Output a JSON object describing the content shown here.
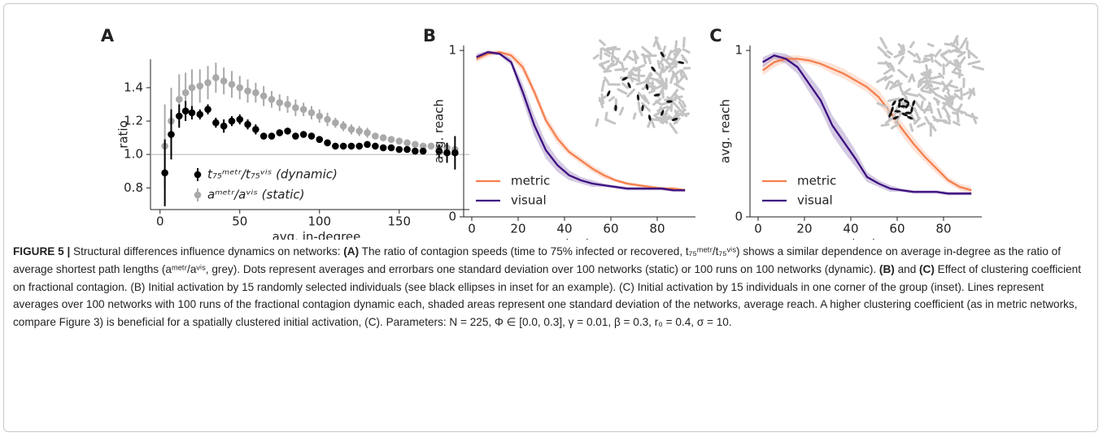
{
  "chart_data": [
    {
      "type": "errorbar",
      "panel_label": "A",
      "xlabel": "avg. in-degree",
      "ylabel": "ratio",
      "xlim": [
        -6,
        194
      ],
      "ylim": [
        0.67,
        1.57
      ],
      "xticks": [
        0,
        50,
        100,
        150
      ],
      "yticks": [
        {
          "value": 0.8,
          "label": "0.8"
        },
        {
          "value": 1.0,
          "label": "1.0"
        },
        {
          "value": 1.2,
          "label": "1.2"
        },
        {
          "value": 1.4,
          "label": "1.4"
        }
      ],
      "series": [
        {
          "name": "t₇₅ᵐᵉᵗʳ/t₇₅ᵛⁱˢ (dynamic)",
          "color": "#000000",
          "x": [
            3,
            7,
            12,
            16,
            20,
            25,
            30,
            35,
            40,
            45,
            50,
            55,
            60,
            65,
            70,
            75,
            80,
            85,
            90,
            95,
            100,
            105,
            110,
            115,
            120,
            125,
            130,
            135,
            140,
            145,
            150,
            155,
            160,
            165,
            175,
            180,
            185
          ],
          "values": [
            0.89,
            1.12,
            1.23,
            1.26,
            1.25,
            1.24,
            1.27,
            1.19,
            1.17,
            1.2,
            1.21,
            1.18,
            1.15,
            1.11,
            1.11,
            1.13,
            1.14,
            1.11,
            1.12,
            1.11,
            1.09,
            1.07,
            1.05,
            1.05,
            1.05,
            1.05,
            1.06,
            1.05,
            1.04,
            1.04,
            1.03,
            1.03,
            1.02,
            1.02,
            1.02,
            1.01,
            1.01
          ],
          "errors": [
            0.2,
            0.15,
            0.07,
            0.06,
            0.04,
            0.03,
            0.03,
            0.03,
            0.04,
            0.03,
            0.03,
            0.03,
            0.03,
            0.02,
            0.02,
            0.02,
            0.02,
            0.02,
            0.02,
            0.02,
            0.02,
            0.02,
            0.01,
            0.01,
            0.01,
            0.01,
            0.01,
            0.01,
            0.01,
            0.01,
            0.01,
            0.01,
            0.01,
            0.01,
            0.04,
            0.06,
            0.1
          ]
        },
        {
          "name": "aᵐᵉᵗʳ/aᵛⁱˢ (static)",
          "color": "#a9a9a9",
          "x": [
            3,
            7,
            12,
            16,
            20,
            25,
            30,
            35,
            40,
            45,
            50,
            55,
            60,
            65,
            70,
            75,
            80,
            85,
            90,
            95,
            100,
            105,
            110,
            115,
            120,
            125,
            130,
            135,
            140,
            145,
            150,
            155,
            160,
            165,
            170,
            175,
            180,
            185
          ],
          "values": [
            1.05,
            1.2,
            1.33,
            1.37,
            1.4,
            1.41,
            1.43,
            1.46,
            1.44,
            1.42,
            1.4,
            1.38,
            1.37,
            1.35,
            1.33,
            1.31,
            1.3,
            1.28,
            1.27,
            1.25,
            1.23,
            1.21,
            1.19,
            1.17,
            1.15,
            1.14,
            1.13,
            1.11,
            1.1,
            1.09,
            1.08,
            1.07,
            1.06,
            1.05,
            1.05,
            1.04,
            1.04,
            1.03
          ],
          "errors": [
            0.25,
            0.2,
            0.15,
            0.12,
            0.11,
            0.1,
            0.1,
            0.09,
            0.08,
            0.08,
            0.07,
            0.07,
            0.06,
            0.06,
            0.05,
            0.05,
            0.05,
            0.05,
            0.04,
            0.04,
            0.04,
            0.04,
            0.03,
            0.03,
            0.03,
            0.03,
            0.03,
            0.02,
            0.02,
            0.02,
            0.02,
            0.02,
            0.02,
            0.02,
            0.02,
            0.02,
            0.02,
            0.02
          ]
        }
      ]
    },
    {
      "type": "line",
      "panel_label": "B",
      "xlabel": "avg. in-degree",
      "ylabel": "avg. reach",
      "xlim": [
        -3.5,
        96.5
      ],
      "ylim": [
        0,
        1.03
      ],
      "xticks": [
        0,
        20,
        40,
        60,
        80
      ],
      "yticks": [
        0,
        1
      ],
      "x": [
        2,
        7,
        12,
        17,
        22,
        27,
        32,
        37,
        42,
        47,
        52,
        57,
        62,
        67,
        72,
        77,
        82,
        87,
        92
      ],
      "series": [
        {
          "name": "metric",
          "color": "#f5804f",
          "values": [
            0.95,
            0.98,
            0.99,
            0.97,
            0.9,
            0.75,
            0.58,
            0.47,
            0.39,
            0.34,
            0.29,
            0.25,
            0.22,
            0.2,
            0.19,
            0.18,
            0.17,
            0.17,
            0.16
          ],
          "std": [
            0.02,
            0.02,
            0.01,
            0.02,
            0.03,
            0.03,
            0.03,
            0.03,
            0.02,
            0.02,
            0.02,
            0.02,
            0.01,
            0.01,
            0.01,
            0.01,
            0.01,
            0.01,
            0.01
          ]
        },
        {
          "name": "visual",
          "color": "#3d0f80",
          "values": [
            0.96,
            0.99,
            0.98,
            0.93,
            0.75,
            0.55,
            0.4,
            0.31,
            0.25,
            0.22,
            0.2,
            0.19,
            0.18,
            0.17,
            0.17,
            0.17,
            0.17,
            0.16,
            0.16
          ],
          "std": [
            0.02,
            0.01,
            0.01,
            0.02,
            0.05,
            0.06,
            0.05,
            0.04,
            0.03,
            0.02,
            0.02,
            0.01,
            0.01,
            0.01,
            0.01,
            0.01,
            0.01,
            0.01,
            0.01
          ]
        }
      ]
    },
    {
      "type": "line",
      "panel_label": "C",
      "xlabel": "avg. in-degree",
      "ylabel": "avg. reach",
      "xlim": [
        -3.5,
        96.5
      ],
      "ylim": [
        0,
        1.03
      ],
      "xticks": [
        0,
        20,
        40,
        60,
        80
      ],
      "yticks": [
        0,
        1
      ],
      "x": [
        2,
        7,
        12,
        17,
        22,
        27,
        32,
        37,
        42,
        47,
        52,
        57,
        62,
        67,
        72,
        77,
        82,
        87,
        92
      ],
      "series": [
        {
          "name": "metric",
          "color": "#f5804f",
          "values": [
            0.88,
            0.93,
            0.95,
            0.95,
            0.94,
            0.92,
            0.89,
            0.86,
            0.82,
            0.78,
            0.72,
            0.63,
            0.53,
            0.44,
            0.36,
            0.29,
            0.22,
            0.18,
            0.16
          ],
          "std": [
            0.03,
            0.03,
            0.02,
            0.02,
            0.02,
            0.02,
            0.03,
            0.03,
            0.03,
            0.03,
            0.04,
            0.04,
            0.04,
            0.04,
            0.03,
            0.03,
            0.02,
            0.02,
            0.02
          ]
        },
        {
          "name": "visual",
          "color": "#3d0f80",
          "values": [
            0.93,
            0.97,
            0.95,
            0.9,
            0.8,
            0.7,
            0.55,
            0.45,
            0.35,
            0.24,
            0.2,
            0.17,
            0.16,
            0.15,
            0.15,
            0.15,
            0.14,
            0.14,
            0.14
          ],
          "std": [
            0.03,
            0.02,
            0.03,
            0.04,
            0.05,
            0.06,
            0.06,
            0.06,
            0.05,
            0.03,
            0.02,
            0.02,
            0.01,
            0.01,
            0.01,
            0.01,
            0.01,
            0.01,
            0.01
          ]
        }
      ]
    }
  ],
  "caption": {
    "parts": [
      "FIGURE 5 |",
      " Structural differences influence dynamics on networks: ",
      "(A)",
      " The ratio of contagion speeds (time to 75% infected or recovered, t₇₅ᵐᵉᵗʳ/t₇₅ᵛⁱˢ) shows a similar dependence on average in-degree as the ratio of average shortest path lengths (aᵐᵉᵗʳ/aᵛⁱˢ, grey). Dots represent averages and errorbars one standard deviation over 100 networks (static) or 100 runs on 100 networks (dynamic). ",
      "(B)",
      " and ",
      "(C)",
      " Effect of clustering coefficient on fractional contagion. (B) Initial activation by 15 randomly selected individuals (see black ellipses in inset for an example). (C) Initial activation by 15 individuals in one corner of the group (inset). Lines represent averages over 100 networks with 100 runs of the fractional contagion dynamic each, shaded areas represent one standard deviation of the networks, average reach. A higher clustering coefficient (as in metric networks, compare Figure 3) is beneficial for a spatially clustered initial activation, (C). Parameters: N = 225, Φ ∈ [0.0, 0.3], γ = 0.01, β = 0.3, r₀ = 0.4, σ = 10."
    ]
  }
}
